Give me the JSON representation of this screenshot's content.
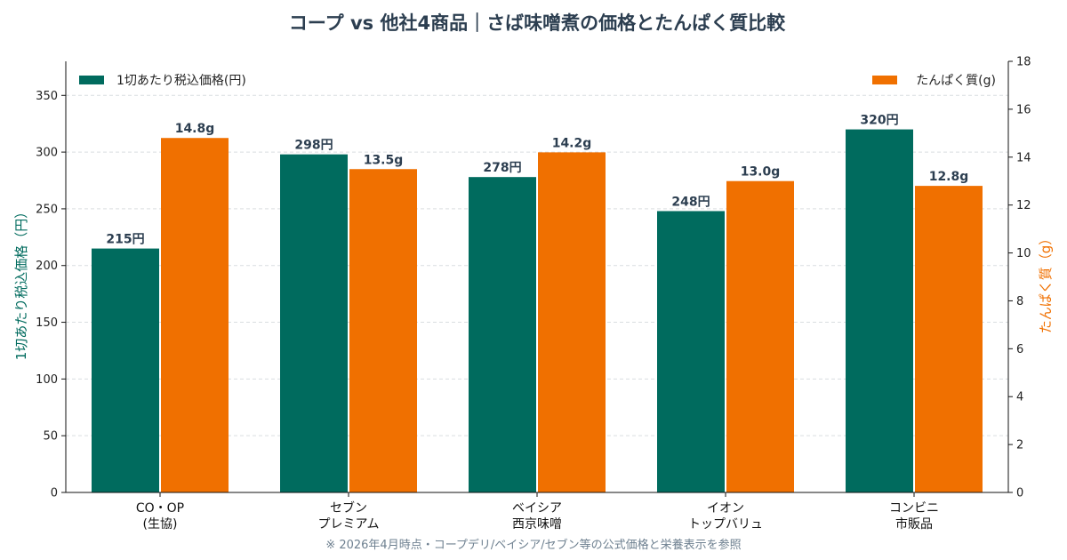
{
  "chart_data": {
    "type": "bar",
    "title": "コープ vs 他社4商品｜さば味噌煮の価格とたんぱく質比較",
    "categories": [
      [
        "CO・OP",
        "(生協)"
      ],
      [
        "セブン",
        "プレミアム"
      ],
      [
        "ベイシア",
        "西京味噌"
      ],
      [
        "イオン",
        "トップバリュ"
      ],
      [
        "コンビニ",
        "市販品"
      ]
    ],
    "series": [
      {
        "name": "1切あたり税込価格(円)",
        "axis": "left",
        "color": "#006b5e",
        "values": [
          215,
          298,
          278,
          248,
          320
        ],
        "labels": [
          "215円",
          "298円",
          "278円",
          "248円",
          "320円"
        ]
      },
      {
        "name": "たんぱく質(g)",
        "axis": "right",
        "color": "#f07000",
        "values": [
          14.8,
          13.5,
          14.2,
          13.0,
          12.8
        ],
        "labels": [
          "14.8g",
          "13.5g",
          "14.2g",
          "13.0g",
          "12.8g"
        ]
      }
    ],
    "ylabel_left": "1切あたり税込価格（円）",
    "ylabel_right": "たんぱく質（g）",
    "ylim_left": [
      0,
      380
    ],
    "yticks_left": [
      0,
      50,
      100,
      150,
      200,
      250,
      300,
      350
    ],
    "ylim_right": [
      0,
      18
    ],
    "yticks_right": [
      0,
      2,
      4,
      6,
      8,
      10,
      12,
      14,
      16,
      18
    ],
    "grid": true,
    "legend_placement": "top-left and top-right"
  },
  "footnote": "※ 2026年4月時点・コープデリ/ベイシア/セブン等の公式価格と栄養表示を参照"
}
